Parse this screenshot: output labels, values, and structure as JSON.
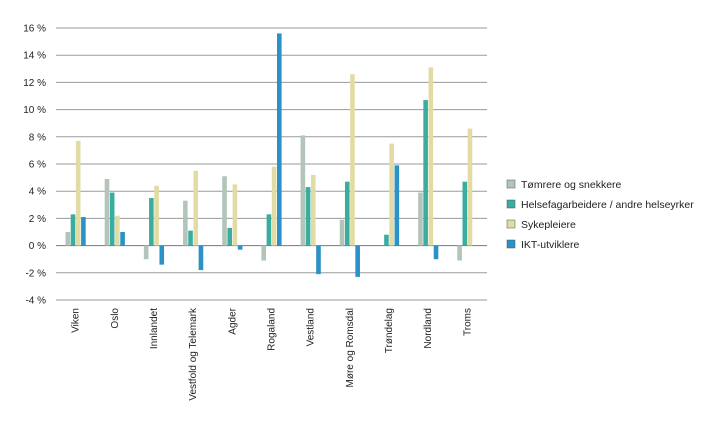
{
  "chart_data": {
    "type": "bar",
    "categories": [
      "Viken",
      "Oslo",
      "Innlandet",
      "Vestfold og Telemark",
      "Agder",
      "Rogaland",
      "Vestland",
      "Møre og Romsdal",
      "Trøndelag",
      "Nordland",
      "Troms"
    ],
    "series": [
      {
        "name": "Tømrere og snekkere",
        "color": "#b3c5b9",
        "values": [
          1.0,
          4.9,
          -1.0,
          3.3,
          5.1,
          -1.1,
          8.1,
          1.9,
          0.0,
          3.9,
          -1.1
        ]
      },
      {
        "name": "Helsefagarbeidere / andre helseyrker",
        "color": "#3aada0",
        "values": [
          2.3,
          3.9,
          3.5,
          1.1,
          1.3,
          2.3,
          4.3,
          4.7,
          0.8,
          10.7,
          4.7
        ]
      },
      {
        "name": "Sykepleiere",
        "color": "#e2dca4",
        "values": [
          7.7,
          2.2,
          4.4,
          5.5,
          4.5,
          5.8,
          5.2,
          12.6,
          7.5,
          13.1,
          8.6
        ]
      },
      {
        "name": "IKT-utviklere",
        "color": "#2a92c6",
        "values": [
          2.1,
          1.0,
          -1.4,
          -1.8,
          -0.3,
          15.6,
          -2.1,
          -2.3,
          5.9,
          -1.0,
          0.0
        ]
      }
    ],
    "ylim": [
      -4,
      16
    ],
    "yticks": [
      -4,
      -2,
      0,
      2,
      4,
      6,
      8,
      10,
      12,
      14,
      16
    ],
    "ytick_labels": [
      "-4 %",
      "-2 %",
      "0 %",
      "2 %",
      "4 %",
      "6 %",
      "8 %",
      "10 %",
      "12 %",
      "14 %",
      "16 %"
    ],
    "grid": true,
    "legend_position": "right",
    "title": "",
    "xlabel": "",
    "ylabel": ""
  }
}
